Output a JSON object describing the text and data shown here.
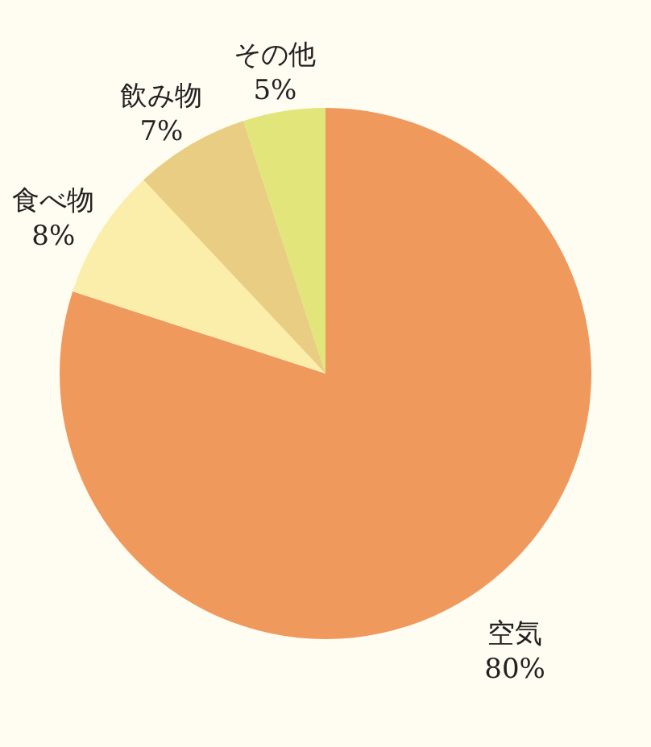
{
  "chart_data": {
    "type": "pie",
    "categories": [
      "空気",
      "食べ物",
      "飲み物",
      "その他"
    ],
    "values": [
      80,
      8,
      7,
      5
    ],
    "value_labels": [
      "80%",
      "8%",
      "7%",
      "5%"
    ],
    "colors": [
      "#f0995d",
      "#fbeeaa",
      "#e8cd82",
      "#e2e57a"
    ]
  }
}
